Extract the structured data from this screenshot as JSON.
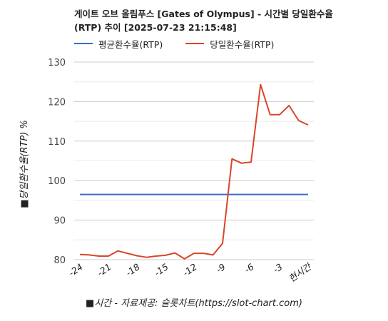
{
  "chart_data": {
    "type": "line",
    "title_line1": "게이트 오브 올림푸스 [Gates of Olympus] - 시간별 당일환수율",
    "title_line2": "(RTP) 추이 [2025-07-23 21:15:48]",
    "xlabel": "■시간 - 자료제공: 슬롯차트(https://slot-chart.com)",
    "ylabel": "■당일환수율(RTP) %",
    "ylim": [
      80,
      130
    ],
    "yticks": [
      "130",
      "120",
      "110",
      "100",
      "90",
      "80"
    ],
    "grid": true,
    "legend_position": "top",
    "x": [
      -24,
      -23,
      -22,
      -21,
      -20,
      -19,
      -18,
      -17,
      -16,
      -15,
      -14,
      -13,
      -12,
      -11,
      -10,
      -9,
      -8,
      -7,
      -6,
      -5,
      -4,
      -3,
      -2,
      -1,
      0
    ],
    "xtick_labels": [
      "-24",
      "-21",
      "-18",
      "-15",
      "-12",
      "-9",
      "-6",
      "-3",
      "현시간"
    ],
    "series": [
      {
        "name": "평균환수율(RTP)",
        "color": "#3a6bc8",
        "values": [
          96.5,
          96.5,
          96.5,
          96.5,
          96.5,
          96.5,
          96.5,
          96.5,
          96.5,
          96.5,
          96.5,
          96.5,
          96.5,
          96.5,
          96.5,
          96.5,
          96.5,
          96.5,
          96.5,
          96.5,
          96.5,
          96.5,
          96.5,
          96.5,
          96.5
        ]
      },
      {
        "name": "당일환수율(RTP)",
        "color": "#d9452b",
        "values": [
          81.3,
          81.2,
          80.9,
          80.9,
          82.2,
          81.6,
          81.0,
          80.6,
          80.9,
          81.1,
          81.7,
          80.2,
          81.6,
          81.6,
          81.2,
          84.1,
          105.5,
          104.4,
          104.7,
          124.3,
          116.7,
          116.7,
          119.0,
          115.2,
          114.1
        ]
      }
    ]
  }
}
